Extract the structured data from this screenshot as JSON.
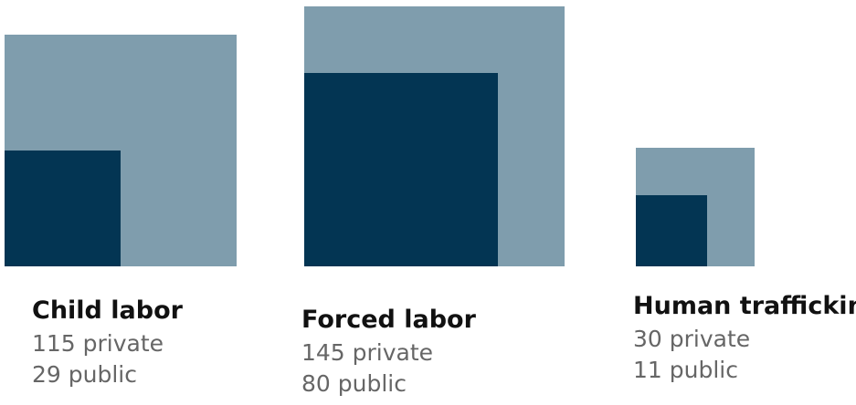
{
  "chart_data": {
    "type": "area",
    "colors": {
      "private": "#7f9dad",
      "public": "#033553"
    },
    "groups": [
      {
        "title": "Child labor",
        "private_label": "115 private",
        "public_label": "29 public",
        "private": 115,
        "public": 29
      },
      {
        "title": "Forced labor",
        "private_label": "145 private",
        "public_label": "80 public",
        "private": 145,
        "public": 80
      },
      {
        "title": "Human trafficking",
        "private_label": "30 private",
        "public_label": "11 public",
        "private": 30,
        "public": 11
      }
    ]
  }
}
